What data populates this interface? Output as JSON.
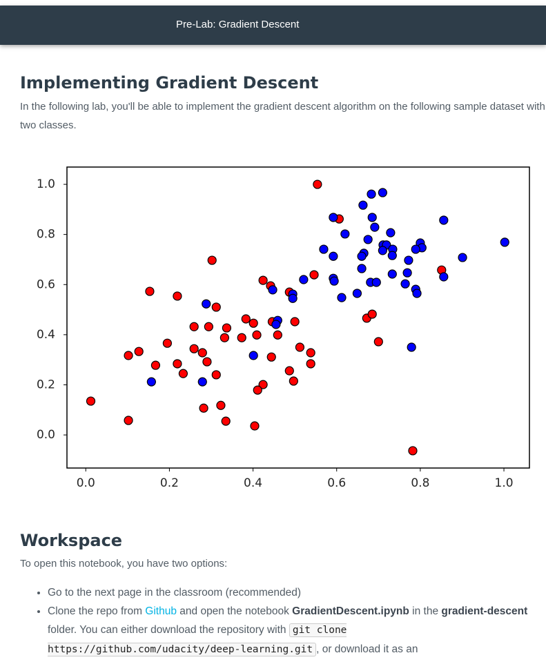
{
  "header": {
    "title": "Pre-Lab: Gradient Descent"
  },
  "intro": {
    "heading": "Implementing Gradient Descent",
    "text": "In the following lab, you'll be able to implement the gradient descent algorithm on the following sample dataset with two classes."
  },
  "chart_data": {
    "type": "scatter",
    "xlim": [
      -0.045,
      1.061
    ],
    "ylim": [
      -0.132,
      1.069
    ],
    "xticks": [
      {
        "value": 0,
        "label": "0.0"
      },
      0.2,
      0.4,
      0.6,
      0.8,
      {
        "value": 1,
        "label": "1.0"
      }
    ],
    "yticks": [
      {
        "value": 0,
        "label": "0.0"
      },
      0.2,
      0.4,
      0.6,
      0.8,
      {
        "value": 1,
        "label": "1.0"
      }
    ],
    "grid": false,
    "series": [
      {
        "color": "#ff0000",
        "x": [
          0.554,
          0.606,
          0.302,
          0.153,
          0.219,
          0.312,
          0.424,
          0.442,
          0.546,
          0.487,
          0.383,
          0.401,
          0.446,
          0.5,
          0.259,
          0.294,
          0.337,
          0.332,
          0.373,
          0.409,
          0.459,
          0.195,
          0.127,
          0.102,
          0.259,
          0.279,
          0.29,
          0.312,
          0.219,
          0.233,
          0.167,
          0.444,
          0.512,
          0.538,
          0.538,
          0.487,
          0.497,
          0.424,
          0.411,
          0.672,
          0.685,
          0.7,
          0.851,
          0.012,
          0.102,
          0.282,
          0.323,
          0.335,
          0.404,
          0.782
        ],
        "values": [
          1.0,
          0.862,
          0.697,
          0.573,
          0.554,
          0.51,
          0.617,
          0.595,
          0.639,
          0.57,
          0.463,
          0.446,
          0.452,
          0.452,
          0.432,
          0.432,
          0.427,
          0.388,
          0.388,
          0.399,
          0.399,
          0.366,
          0.333,
          0.317,
          0.344,
          0.328,
          0.292,
          0.24,
          0.284,
          0.245,
          0.278,
          0.311,
          0.35,
          0.328,
          0.284,
          0.256,
          0.215,
          0.201,
          0.179,
          0.466,
          0.482,
          0.372,
          0.658,
          0.135,
          0.058,
          0.107,
          0.118,
          0.055,
          0.036,
          -0.063
        ]
      },
      {
        "color": "#0000ff",
        "x": [
          0.71,
          0.683,
          0.663,
          0.592,
          0.685,
          0.691,
          0.62,
          0.729,
          0.675,
          0.856,
          1.002,
          0.711,
          0.719,
          0.734,
          0.71,
          0.733,
          0.8,
          0.804,
          0.789,
          0.569,
          0.592,
          0.665,
          0.66,
          0.901,
          0.772,
          0.66,
          0.769,
          0.733,
          0.856,
          0.521,
          0.592,
          0.594,
          0.681,
          0.695,
          0.764,
          0.789,
          0.792,
          0.447,
          0.495,
          0.495,
          0.612,
          0.649,
          0.288,
          0.459,
          0.455,
          0.401,
          0.779,
          0.157,
          0.279
        ],
        "values": [
          0.967,
          0.961,
          0.917,
          0.868,
          0.868,
          0.829,
          0.802,
          0.807,
          0.78,
          0.857,
          0.769,
          0.758,
          0.758,
          0.741,
          0.736,
          0.716,
          0.766,
          0.747,
          0.741,
          0.741,
          0.713,
          0.725,
          0.713,
          0.708,
          0.697,
          0.664,
          0.647,
          0.642,
          0.631,
          0.62,
          0.625,
          0.614,
          0.609,
          0.609,
          0.603,
          0.581,
          0.565,
          0.579,
          0.562,
          0.545,
          0.548,
          0.565,
          0.523,
          0.457,
          0.441,
          0.317,
          0.35,
          0.212,
          0.212
        ]
      }
    ]
  },
  "workspace": {
    "heading": "Workspace",
    "text": "To open this notebook, you have two options:",
    "items": [
      {
        "parts": [
          {
            "text": "Go to the next page in the classroom (recommended)"
          }
        ]
      },
      {
        "parts": [
          {
            "text": "Clone the repo from "
          },
          {
            "text": "Github",
            "style": "link"
          },
          {
            "text": " and open the notebook "
          },
          {
            "text": "GradientDescent.ipynb",
            "style": "bold"
          },
          {
            "text": " in the "
          },
          {
            "text": "gradient-descent",
            "style": "bold"
          },
          {
            "text": " folder. You can either download the repository with "
          },
          {
            "text": "git clone https://github.com/udacity/deep-learning.git",
            "style": "code"
          },
          {
            "text": ", or download it as an"
          }
        ]
      }
    ]
  }
}
